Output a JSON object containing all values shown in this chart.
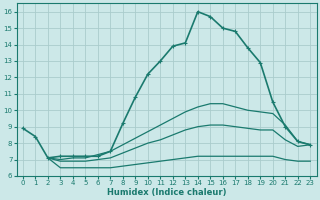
{
  "xlabel": "Humidex (Indice chaleur)",
  "background_color": "#cce8e8",
  "grid_color": "#aacccc",
  "line_color": "#1a7a6e",
  "xlim": [
    -0.5,
    23.5
  ],
  "ylim": [
    6.0,
    16.5
  ],
  "yticks": [
    6,
    7,
    8,
    9,
    10,
    11,
    12,
    13,
    14,
    15,
    16
  ],
  "xticks": [
    0,
    1,
    2,
    3,
    4,
    5,
    6,
    7,
    8,
    9,
    10,
    11,
    12,
    13,
    14,
    15,
    16,
    17,
    18,
    19,
    20,
    21,
    22,
    23
  ],
  "curves": [
    {
      "x": [
        0,
        1,
        2,
        3,
        4,
        5,
        6,
        7,
        8,
        9,
        10,
        11,
        12,
        13,
        14,
        15,
        16,
        17,
        18,
        19,
        20,
        21,
        22,
        23
      ],
      "y": [
        8.9,
        8.4,
        7.1,
        7.2,
        7.2,
        7.2,
        7.2,
        7.5,
        9.2,
        10.8,
        12.2,
        13.0,
        13.9,
        14.1,
        16.0,
        15.7,
        15.0,
        14.8,
        13.8,
        12.9,
        10.5,
        9.0,
        8.1,
        7.9
      ],
      "marker": true,
      "lw": 1.2
    },
    {
      "x": [
        2,
        3,
        4,
        5,
        6,
        7,
        8,
        9,
        10,
        11,
        12,
        13,
        14,
        15,
        16,
        17,
        18,
        19,
        20,
        21,
        22,
        23
      ],
      "y": [
        7.1,
        7.0,
        7.1,
        7.1,
        7.3,
        7.5,
        7.9,
        8.3,
        8.7,
        9.1,
        9.5,
        9.9,
        10.2,
        10.4,
        10.4,
        10.2,
        10.0,
        9.9,
        9.8,
        9.1,
        8.1,
        7.9
      ],
      "marker": false,
      "lw": 0.9
    },
    {
      "x": [
        2,
        3,
        4,
        5,
        6,
        7,
        8,
        9,
        10,
        11,
        12,
        13,
        14,
        15,
        16,
        17,
        18,
        19,
        20,
        21,
        22,
        23
      ],
      "y": [
        7.1,
        6.9,
        6.9,
        6.9,
        7.0,
        7.1,
        7.4,
        7.7,
        8.0,
        8.2,
        8.5,
        8.8,
        9.0,
        9.1,
        9.1,
        9.0,
        8.9,
        8.8,
        8.8,
        8.2,
        7.8,
        7.9
      ],
      "marker": false,
      "lw": 0.9
    },
    {
      "x": [
        2,
        3,
        4,
        5,
        6,
        7,
        8,
        9,
        10,
        11,
        12,
        13,
        14,
        15,
        16,
        17,
        18,
        19,
        20,
        21,
        22,
        23
      ],
      "y": [
        7.1,
        6.5,
        6.5,
        6.5,
        6.5,
        6.5,
        6.6,
        6.7,
        6.8,
        6.9,
        7.0,
        7.1,
        7.2,
        7.2,
        7.2,
        7.2,
        7.2,
        7.2,
        7.2,
        7.0,
        6.9,
        6.9
      ],
      "marker": false,
      "lw": 0.9
    }
  ]
}
